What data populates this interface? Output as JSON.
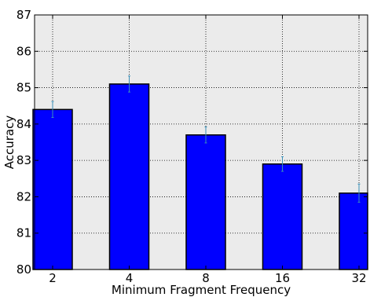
{
  "chart_data": {
    "type": "bar",
    "categories": [
      "2",
      "4",
      "8",
      "16",
      "32"
    ],
    "values": [
      84.4,
      85.1,
      83.7,
      82.9,
      82.1
    ],
    "errors": [
      0.22,
      0.22,
      0.22,
      0.2,
      0.25
    ],
    "xlabel": "Minimum Fragment Frequency",
    "ylabel": "Accuracy",
    "ylim": [
      80,
      87
    ],
    "yticks": [
      "80",
      "81",
      "82",
      "83",
      "84",
      "85",
      "86",
      "87"
    ],
    "grid": true,
    "colors": {
      "bar": "#0000ff",
      "bar_edge": "#000000",
      "error_bar": "#3a8fb7",
      "background": "#ebebeb",
      "grid": "#000000"
    }
  }
}
